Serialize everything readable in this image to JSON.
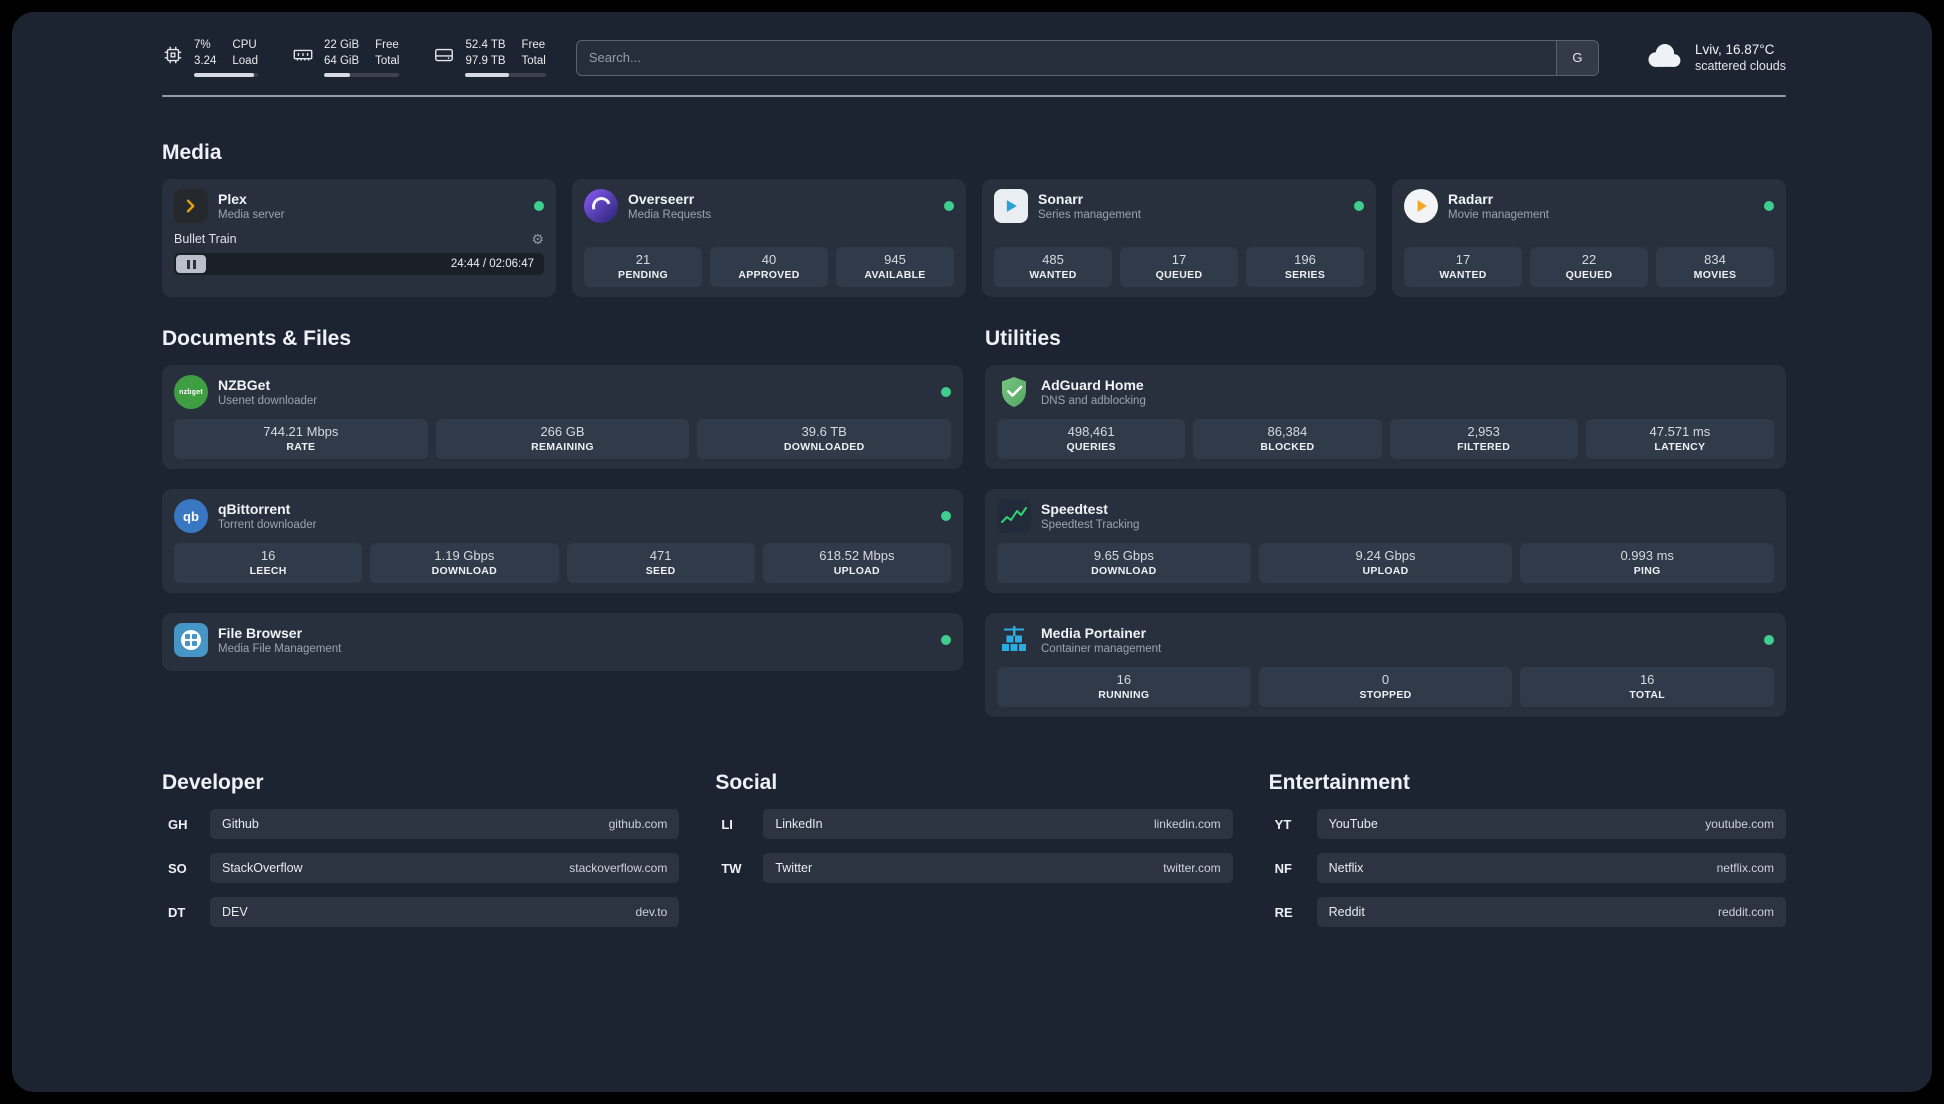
{
  "colors": {
    "background": "#1c2431",
    "card": "#28303d",
    "status_online_dot": "#3ecf8e",
    "plex_accent": "#e5a00d"
  },
  "topbar": {
    "resources": [
      {
        "icon": "cpu-icon",
        "value_top": "7%",
        "value_bottom": "3.24",
        "label_top": "CPU",
        "label_bottom": "Load",
        "bar_percent": 93
      },
      {
        "icon": "ram-icon",
        "value_top": "22 GiB",
        "value_bottom": "64 GiB",
        "label_top": "Free",
        "label_bottom": "Total",
        "bar_percent": 34
      },
      {
        "icon": "disk-icon",
        "value_top": "52.4 TB",
        "value_bottom": "97.9 TB",
        "label_top": "Free",
        "label_bottom": "Total",
        "bar_percent": 54
      }
    ],
    "search": {
      "placeholder": "Search...",
      "engine_button": "G"
    },
    "weather": {
      "location": "Lviv, 16.87°C",
      "condition": "scattered clouds"
    }
  },
  "media": {
    "title": "Media",
    "plex": {
      "name": "Plex",
      "subtitle": "Media server",
      "now_playing": "Bullet Train",
      "time": "24:44 / 02:06:47"
    },
    "overseerr": {
      "name": "Overseerr",
      "subtitle": "Media Requests",
      "stats": [
        {
          "value": "21",
          "label": "PENDING"
        },
        {
          "value": "40",
          "label": "APPROVED"
        },
        {
          "value": "945",
          "label": "AVAILABLE"
        }
      ]
    },
    "sonarr": {
      "name": "Sonarr",
      "subtitle": "Series management",
      "stats": [
        {
          "value": "485",
          "label": "WANTED"
        },
        {
          "value": "17",
          "label": "QUEUED"
        },
        {
          "value": "196",
          "label": "SERIES"
        }
      ]
    },
    "radarr": {
      "name": "Radarr",
      "subtitle": "Movie management",
      "stats": [
        {
          "value": "17",
          "label": "WANTED"
        },
        {
          "value": "22",
          "label": "QUEUED"
        },
        {
          "value": "834",
          "label": "MOVIES"
        }
      ]
    }
  },
  "documents": {
    "title": "Documents & Files",
    "nzbget": {
      "name": "NZBGet",
      "subtitle": "Usenet downloader",
      "icon_text": "nzbget",
      "stats": [
        {
          "value": "744.21 Mbps",
          "label": "RATE"
        },
        {
          "value": "266 GB",
          "label": "REMAINING"
        },
        {
          "value": "39.6 TB",
          "label": "DOWNLOADED"
        }
      ]
    },
    "qbittorrent": {
      "name": "qBittorrent",
      "subtitle": "Torrent downloader",
      "icon_text": "qb",
      "stats": [
        {
          "value": "16",
          "label": "LEECH"
        },
        {
          "value": "1.19 Gbps",
          "label": "DOWNLOAD"
        },
        {
          "value": "471",
          "label": "SEED"
        },
        {
          "value": "618.52 Mbps",
          "label": "UPLOAD"
        }
      ]
    },
    "filebrowser": {
      "name": "File Browser",
      "subtitle": "Media File Management"
    }
  },
  "utilities": {
    "title": "Utilities",
    "adguard": {
      "name": "AdGuard Home",
      "subtitle": "DNS and adblocking",
      "stats": [
        {
          "value": "498,461",
          "label": "QUERIES"
        },
        {
          "value": "86,384",
          "label": "BLOCKED"
        },
        {
          "value": "2,953",
          "label": "FILTERED"
        },
        {
          "value": "47.571 ms",
          "label": "LATENCY"
        }
      ]
    },
    "speedtest": {
      "name": "Speedtest",
      "subtitle": "Speedtest Tracking",
      "stats": [
        {
          "value": "9.65 Gbps",
          "label": "DOWNLOAD"
        },
        {
          "value": "9.24 Gbps",
          "label": "UPLOAD"
        },
        {
          "value": "0.993 ms",
          "label": "PING"
        }
      ]
    },
    "portainer": {
      "name": "Media Portainer",
      "subtitle": "Container management",
      "stats": [
        {
          "value": "16",
          "label": "RUNNING"
        },
        {
          "value": "0",
          "label": "STOPPED"
        },
        {
          "value": "16",
          "label": "TOTAL"
        }
      ]
    }
  },
  "bookmarks": [
    {
      "title": "Developer",
      "items": [
        {
          "abbr": "GH",
          "name": "Github",
          "url": "github.com"
        },
        {
          "abbr": "SO",
          "name": "StackOverflow",
          "url": "stackoverflow.com"
        },
        {
          "abbr": "DT",
          "name": "DEV",
          "url": "dev.to"
        }
      ]
    },
    {
      "title": "Social",
      "items": [
        {
          "abbr": "LI",
          "name": "LinkedIn",
          "url": "linkedin.com"
        },
        {
          "abbr": "TW",
          "name": "Twitter",
          "url": "twitter.com"
        }
      ]
    },
    {
      "title": "Entertainment",
      "items": [
        {
          "abbr": "YT",
          "name": "YouTube",
          "url": "youtube.com"
        },
        {
          "abbr": "NF",
          "name": "Netflix",
          "url": "netflix.com"
        },
        {
          "abbr": "RE",
          "name": "Reddit",
          "url": "reddit.com"
        }
      ]
    }
  ]
}
